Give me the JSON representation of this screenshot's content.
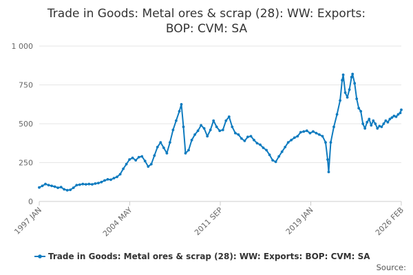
{
  "chart_data": {
    "type": "line",
    "title_lines": [
      "Trade in Goods: Metal ores & scrap (28): WW: Exports:",
      "BOP: CVM: SA"
    ],
    "xlabel": "",
    "ylabel": "",
    "x_ticks": [
      "1997 JAN",
      "2004 MAY",
      "2011 SEP",
      "2019 JAN",
      "2026 FEB"
    ],
    "y_ticks": [
      "0",
      "250",
      "500",
      "750",
      "1 000"
    ],
    "ylim": [
      0,
      1000
    ],
    "xlim": [
      "1997-01",
      "2026-02"
    ],
    "grid": "horizontal",
    "legend": "bottom",
    "color": "#0e7bbf",
    "source_label": "Source:",
    "series": [
      {
        "name": "Trade in Goods: Metal ores & scrap (28): WW: Exports: BOP: CVM: SA",
        "points": [
          [
            "1997-01",
            90
          ],
          [
            "1997-04",
            100
          ],
          [
            "1997-07",
            112
          ],
          [
            "1997-10",
            105
          ],
          [
            "1998-01",
            100
          ],
          [
            "1998-04",
            95
          ],
          [
            "1998-07",
            88
          ],
          [
            "1998-10",
            92
          ],
          [
            "1999-01",
            78
          ],
          [
            "1999-04",
            72
          ],
          [
            "1999-07",
            75
          ],
          [
            "1999-10",
            88
          ],
          [
            "2000-01",
            105
          ],
          [
            "2000-04",
            108
          ],
          [
            "2000-07",
            112
          ],
          [
            "2000-10",
            110
          ],
          [
            "2001-01",
            112
          ],
          [
            "2001-04",
            110
          ],
          [
            "2001-07",
            115
          ],
          [
            "2001-10",
            118
          ],
          [
            "2002-01",
            125
          ],
          [
            "2002-04",
            135
          ],
          [
            "2002-07",
            142
          ],
          [
            "2002-10",
            140
          ],
          [
            "2003-01",
            150
          ],
          [
            "2003-04",
            158
          ],
          [
            "2003-07",
            175
          ],
          [
            "2003-10",
            210
          ],
          [
            "2004-01",
            240
          ],
          [
            "2004-04",
            270
          ],
          [
            "2004-07",
            280
          ],
          [
            "2004-10",
            265
          ],
          [
            "2005-01",
            285
          ],
          [
            "2005-04",
            290
          ],
          [
            "2005-07",
            260
          ],
          [
            "2005-10",
            225
          ],
          [
            "2006-01",
            240
          ],
          [
            "2006-04",
            295
          ],
          [
            "2006-07",
            350
          ],
          [
            "2006-10",
            380
          ],
          [
            "2007-01",
            345
          ],
          [
            "2007-04",
            310
          ],
          [
            "2007-07",
            380
          ],
          [
            "2007-10",
            460
          ],
          [
            "2008-01",
            520
          ],
          [
            "2008-04",
            580
          ],
          [
            "2008-06",
            625
          ],
          [
            "2008-08",
            480
          ],
          [
            "2008-10",
            310
          ],
          [
            "2009-01",
            330
          ],
          [
            "2009-04",
            395
          ],
          [
            "2009-07",
            430
          ],
          [
            "2009-10",
            455
          ],
          [
            "2010-01",
            490
          ],
          [
            "2010-04",
            470
          ],
          [
            "2010-07",
            420
          ],
          [
            "2010-10",
            460
          ],
          [
            "2011-01",
            520
          ],
          [
            "2011-04",
            480
          ],
          [
            "2011-07",
            455
          ],
          [
            "2011-10",
            460
          ],
          [
            "2012-01",
            520
          ],
          [
            "2012-04",
            545
          ],
          [
            "2012-07",
            480
          ],
          [
            "2012-10",
            440
          ],
          [
            "2013-01",
            430
          ],
          [
            "2013-04",
            405
          ],
          [
            "2013-07",
            390
          ],
          [
            "2013-10",
            415
          ],
          [
            "2014-01",
            420
          ],
          [
            "2014-04",
            395
          ],
          [
            "2014-07",
            375
          ],
          [
            "2014-10",
            365
          ],
          [
            "2015-01",
            345
          ],
          [
            "2015-04",
            330
          ],
          [
            "2015-07",
            300
          ],
          [
            "2015-10",
            265
          ],
          [
            "2016-01",
            255
          ],
          [
            "2016-04",
            290
          ],
          [
            "2016-07",
            320
          ],
          [
            "2016-10",
            350
          ],
          [
            "2017-01",
            380
          ],
          [
            "2017-04",
            395
          ],
          [
            "2017-07",
            410
          ],
          [
            "2017-10",
            420
          ],
          [
            "2018-01",
            445
          ],
          [
            "2018-04",
            450
          ],
          [
            "2018-07",
            455
          ],
          [
            "2018-10",
            440
          ],
          [
            "2019-01",
            450
          ],
          [
            "2019-04",
            440
          ],
          [
            "2019-07",
            430
          ],
          [
            "2019-10",
            420
          ],
          [
            "2020-01",
            380
          ],
          [
            "2020-03",
            270
          ],
          [
            "2020-04",
            190
          ],
          [
            "2020-06",
            380
          ],
          [
            "2020-09",
            480
          ],
          [
            "2020-12",
            560
          ],
          [
            "2021-03",
            650
          ],
          [
            "2021-05",
            780
          ],
          [
            "2021-06",
            815
          ],
          [
            "2021-08",
            700
          ],
          [
            "2021-10",
            670
          ],
          [
            "2021-12",
            720
          ],
          [
            "2022-02",
            800
          ],
          [
            "2022-03",
            820
          ],
          [
            "2022-05",
            760
          ],
          [
            "2022-07",
            660
          ],
          [
            "2022-09",
            600
          ],
          [
            "2022-11",
            580
          ],
          [
            "2023-01",
            500
          ],
          [
            "2023-03",
            470
          ],
          [
            "2023-05",
            510
          ],
          [
            "2023-07",
            530
          ],
          [
            "2023-09",
            490
          ],
          [
            "2023-11",
            520
          ],
          [
            "2024-01",
            500
          ],
          [
            "2024-03",
            470
          ],
          [
            "2024-05",
            485
          ],
          [
            "2024-07",
            480
          ],
          [
            "2024-09",
            500
          ],
          [
            "2024-11",
            520
          ],
          [
            "2025-01",
            510
          ],
          [
            "2025-03",
            530
          ],
          [
            "2025-05",
            540
          ],
          [
            "2025-07",
            550
          ],
          [
            "2025-09",
            545
          ],
          [
            "2025-11",
            560
          ],
          [
            "2026-01",
            570
          ],
          [
            "2026-02",
            590
          ]
        ]
      }
    ]
  }
}
